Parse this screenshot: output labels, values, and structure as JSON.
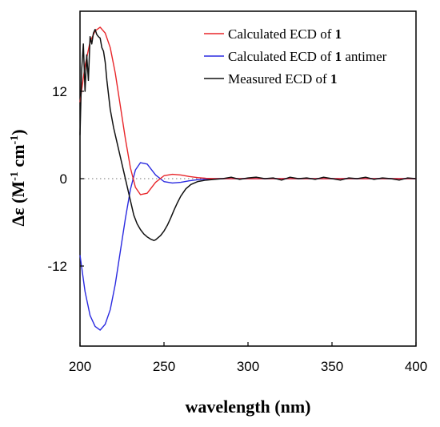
{
  "chart_data": {
    "type": "line",
    "xlabel": "wavelength (nm)",
    "ylabel": {
      "prefix": "Δε (M",
      "sup1": "-1",
      "middle": " cm",
      "sup2": "-1",
      "suffix": ")"
    },
    "xlim": [
      200,
      400
    ],
    "ylim": [
      -23,
      23
    ],
    "xticks": [
      200,
      250,
      300,
      350,
      400
    ],
    "xtick_labels": [
      "200",
      "250",
      "300",
      "350",
      "400"
    ],
    "yticks": [
      12,
      0,
      -12
    ],
    "ytick_labels": [
      "12",
      "0",
      "-12"
    ],
    "zero_line": "dotted",
    "legend_position": "top-right",
    "series": [
      {
        "name": "Calculated ECD of 1",
        "color": "#e8262a",
        "x": [
          200,
          203,
          206,
          209,
          212,
          215,
          218,
          221,
          224,
          227,
          230,
          233,
          236,
          240,
          245,
          250,
          255,
          260,
          265,
          270,
          275,
          280,
          285,
          290,
          295,
          300,
          310,
          320,
          340,
          360,
          380,
          400
        ],
        "values": [
          10.5,
          15.5,
          18.8,
          20.3,
          20.8,
          20.0,
          18.0,
          14.5,
          10.0,
          5.5,
          1.5,
          -1.2,
          -2.2,
          -2.0,
          -0.5,
          0.4,
          0.6,
          0.5,
          0.3,
          0.15,
          0.05,
          0.0,
          0.0,
          0.0,
          0.0,
          0.0,
          0.0,
          0.0,
          0.0,
          0.0,
          0.0,
          0.0
        ]
      },
      {
        "name": "Calculated ECD of 1 antimer",
        "color": "#2a2ae0",
        "x": [
          200,
          203,
          206,
          209,
          212,
          215,
          218,
          221,
          224,
          227,
          230,
          233,
          236,
          240,
          245,
          250,
          255,
          260,
          265,
          270,
          275,
          280,
          285,
          290,
          295,
          300,
          310,
          320,
          340,
          360,
          380,
          400
        ],
        "values": [
          -10.5,
          -15.5,
          -18.8,
          -20.3,
          -20.8,
          -20.0,
          -18.0,
          -14.5,
          -10.0,
          -5.5,
          -1.5,
          1.2,
          2.2,
          2.0,
          0.5,
          -0.4,
          -0.6,
          -0.5,
          -0.3,
          -0.15,
          -0.05,
          0.0,
          0.0,
          0.0,
          0.0,
          0.0,
          0.0,
          0.0,
          0.0,
          0.0,
          0.0,
          0.0
        ]
      },
      {
        "name": "Measured ECD of 1",
        "color": "#111111",
        "x": [
          200,
          201,
          202,
          203,
          204,
          205,
          206,
          207,
          208,
          209,
          210,
          211,
          212,
          213,
          214,
          215,
          216,
          218,
          220,
          222,
          224,
          226,
          228,
          230,
          232,
          234,
          236,
          238,
          240,
          242,
          244,
          245,
          246,
          248,
          250,
          252,
          254,
          256,
          258,
          260,
          263,
          266,
          270,
          275,
          280,
          285,
          290,
          295,
          300,
          305,
          310,
          315,
          320,
          325,
          330,
          335,
          340,
          345,
          350,
          355,
          360,
          365,
          370,
          375,
          380,
          385,
          390,
          395,
          400
        ],
        "values": [
          6.0,
          15.0,
          18.5,
          12.0,
          17.0,
          13.5,
          19.5,
          18.5,
          20.0,
          20.5,
          19.8,
          19.5,
          19.3,
          18.0,
          17.5,
          16.0,
          13.5,
          9.5,
          7.0,
          5.0,
          3.0,
          1.0,
          -1.0,
          -3.0,
          -5.0,
          -6.2,
          -7.0,
          -7.6,
          -8.0,
          -8.3,
          -8.5,
          -8.4,
          -8.2,
          -7.8,
          -7.2,
          -6.4,
          -5.4,
          -4.3,
          -3.3,
          -2.4,
          -1.4,
          -0.8,
          -0.4,
          -0.2,
          -0.1,
          0.0,
          0.2,
          -0.1,
          0.1,
          0.2,
          0.0,
          0.1,
          -0.2,
          0.2,
          0.0,
          0.1,
          -0.1,
          0.2,
          0.0,
          -0.2,
          0.1,
          0.0,
          0.2,
          -0.1,
          0.1,
          0.0,
          -0.2,
          0.1,
          0.0
        ]
      }
    ]
  }
}
